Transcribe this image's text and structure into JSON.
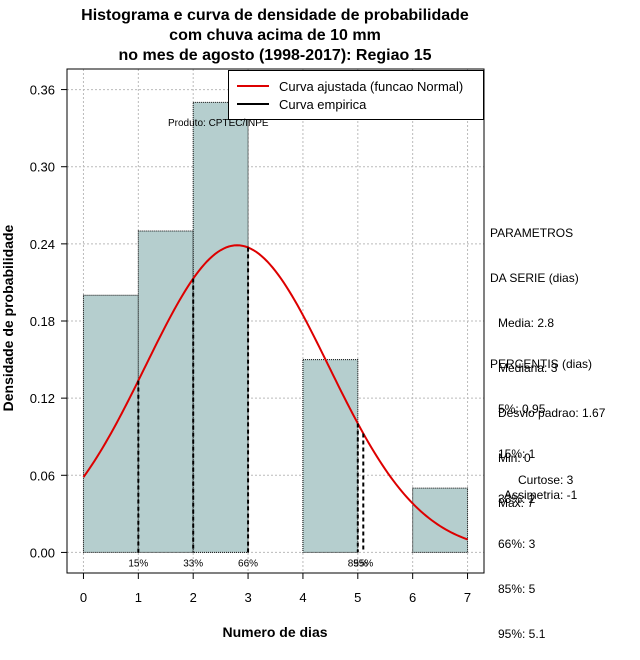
{
  "title_lines": [
    "Histograma e curva de densidade de probabilidade",
    "com chuva acima de 10 mm",
    "no mes de agosto (1998-2017): Regiao 15"
  ],
  "legend": {
    "fitted": "Curva ajustada (funcao Normal)",
    "empirical": "Curva empirica"
  },
  "credit": "Produto: CPTEC/INPE",
  "parametros": {
    "header1": "PARAMETROS",
    "header2": "DA SERIE (dias)",
    "items": [
      "Media: 2.8",
      "Mediana: 3",
      "Desvio padrao: 1.67",
      "Min: 0",
      "Max: 7"
    ]
  },
  "percentis": {
    "header": "PERCENTIS (dias)",
    "items": [
      "5%: 0.95",
      "15%: 1",
      "33%: 2",
      "66%: 3",
      "85%: 5",
      "95%: 5.1"
    ]
  },
  "stats": {
    "curtose": "Curtose: 3",
    "assimetria": "Assimetria: -1"
  },
  "chart_data": {
    "type": "bar",
    "title": "Histograma e curva de densidade de probabilidade com chuva acima de 10 mm no mes de agosto (1998-2017): Regiao 15",
    "xlabel": "Numero de dias",
    "ylabel": "Densidade de probabilidade",
    "xlim": [
      -0.3,
      7.3
    ],
    "ylim": [
      -0.016,
      0.376
    ],
    "xticks": [
      0,
      1,
      2,
      3,
      4,
      5,
      6,
      7
    ],
    "yticks": [
      "0.00",
      "0.06",
      "0.12",
      "0.18",
      "0.24",
      "0.30",
      "0.36"
    ],
    "bins": [
      {
        "from": 0,
        "to": 1,
        "density": 0.2
      },
      {
        "from": 1,
        "to": 2,
        "density": 0.25
      },
      {
        "from": 2,
        "to": 3,
        "density": 0.35
      },
      {
        "from": 3,
        "to": 4,
        "density": 0.0
      },
      {
        "from": 4,
        "to": 5,
        "density": 0.15
      },
      {
        "from": 5,
        "to": 6,
        "density": 0.0
      },
      {
        "from": 6,
        "to": 7,
        "density": 0.05
      }
    ],
    "normal_fit": {
      "mean": 2.8,
      "sd": 1.67,
      "color": "#dd0000"
    },
    "percentile_markers": [
      {
        "label": "15%",
        "x": 1
      },
      {
        "label": "33%",
        "x": 2
      },
      {
        "label": "66%",
        "x": 3
      },
      {
        "label": "85%",
        "x": 5
      },
      {
        "label": "95%",
        "x": 5.1
      }
    ],
    "bar_color": "#b5cece",
    "grid": true
  }
}
